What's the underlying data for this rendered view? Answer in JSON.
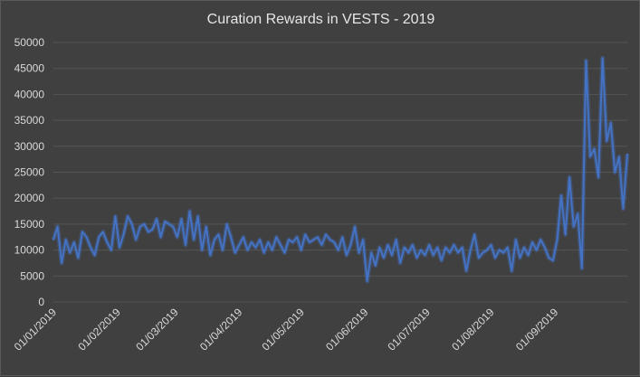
{
  "chart_data": {
    "type": "line",
    "title": "Curation Rewards in VESTS - 2019",
    "xlabel": "",
    "ylabel": "",
    "ylim": [
      0,
      50000
    ],
    "y_ticks": [
      "0",
      "5000",
      "10000",
      "15000",
      "20000",
      "25000",
      "30000",
      "35000",
      "40000",
      "45000",
      "50000"
    ],
    "x_ticks": [
      "01/01/2019",
      "01/02/2019",
      "01/03/2019",
      "01/04/2019",
      "01/05/2019",
      "01/06/2019",
      "01/07/2019",
      "01/08/2019",
      "01/09/2019"
    ],
    "x_start": "2019-01-01",
    "x_end": "2019-10-06",
    "grid": true,
    "legend": "none",
    "colors": {
      "line": "#4472c4",
      "grid": "#555555",
      "background": "#404040"
    },
    "series": [
      {
        "x": [
          "2019-01-01",
          "2019-01-03",
          "2019-01-05",
          "2019-01-07",
          "2019-01-09",
          "2019-01-11",
          "2019-01-13",
          "2019-01-15",
          "2019-01-17",
          "2019-01-19",
          "2019-01-21",
          "2019-01-23",
          "2019-01-25",
          "2019-01-27",
          "2019-01-29",
          "2019-01-31",
          "2019-02-02",
          "2019-02-04",
          "2019-02-06",
          "2019-02-08",
          "2019-02-10",
          "2019-02-12",
          "2019-02-14",
          "2019-02-16",
          "2019-02-18",
          "2019-02-20",
          "2019-02-22",
          "2019-02-24",
          "2019-02-26",
          "2019-02-28",
          "2019-03-02",
          "2019-03-04",
          "2019-03-06",
          "2019-03-08",
          "2019-03-10",
          "2019-03-12",
          "2019-03-14",
          "2019-03-16",
          "2019-03-18",
          "2019-03-20",
          "2019-03-22",
          "2019-03-24",
          "2019-03-26",
          "2019-03-28",
          "2019-03-30",
          "2019-04-01",
          "2019-04-03",
          "2019-04-05",
          "2019-04-07",
          "2019-04-09",
          "2019-04-11",
          "2019-04-13",
          "2019-04-15",
          "2019-04-17",
          "2019-04-19",
          "2019-04-21",
          "2019-04-23",
          "2019-04-25",
          "2019-04-27",
          "2019-04-29",
          "2019-05-01",
          "2019-05-03",
          "2019-05-05",
          "2019-05-07",
          "2019-05-09",
          "2019-05-11",
          "2019-05-13",
          "2019-05-15",
          "2019-05-17",
          "2019-05-19",
          "2019-05-21",
          "2019-05-23",
          "2019-05-25",
          "2019-05-27",
          "2019-05-29",
          "2019-05-31",
          "2019-06-02",
          "2019-06-04",
          "2019-06-06",
          "2019-06-08",
          "2019-06-10",
          "2019-06-12",
          "2019-06-14",
          "2019-06-16",
          "2019-06-18",
          "2019-06-20",
          "2019-06-22",
          "2019-06-24",
          "2019-06-26",
          "2019-06-28",
          "2019-06-30",
          "2019-07-02",
          "2019-07-04",
          "2019-07-06",
          "2019-07-08",
          "2019-07-10",
          "2019-07-12",
          "2019-07-14",
          "2019-07-16",
          "2019-07-18",
          "2019-07-20",
          "2019-07-22",
          "2019-07-24",
          "2019-07-26",
          "2019-07-28",
          "2019-07-30",
          "2019-08-01",
          "2019-08-03",
          "2019-08-05",
          "2019-08-07",
          "2019-08-09",
          "2019-08-11",
          "2019-08-13",
          "2019-08-15",
          "2019-08-17",
          "2019-08-19",
          "2019-08-21",
          "2019-08-23",
          "2019-08-25",
          "2019-08-27",
          "2019-08-29",
          "2019-08-31",
          "2019-09-02",
          "2019-09-04",
          "2019-09-06",
          "2019-09-08",
          "2019-09-10",
          "2019-09-12",
          "2019-09-14",
          "2019-09-16",
          "2019-09-18",
          "2019-09-20",
          "2019-09-22",
          "2019-09-24",
          "2019-09-26",
          "2019-09-28",
          "2019-09-30",
          "2019-10-02",
          "2019-10-04",
          "2019-10-06"
        ],
        "y": [
          12000,
          14500,
          7500,
          12000,
          9500,
          11500,
          8500,
          13500,
          12500,
          10500,
          9000,
          12500,
          13500,
          11500,
          10000,
          16500,
          10500,
          13000,
          16500,
          15000,
          12000,
          14500,
          15000,
          13500,
          14000,
          16000,
          12500,
          15500,
          15000,
          14500,
          12500,
          16000,
          11000,
          17500,
          12000,
          16500,
          10000,
          14500,
          9000,
          12000,
          13000,
          10000,
          15000,
          12500,
          9500,
          11000,
          12500,
          10000,
          11500,
          10500,
          12000,
          9500,
          11500,
          10000,
          12500,
          11000,
          9500,
          12000,
          11500,
          12500,
          10000,
          13000,
          11500,
          12000,
          12500,
          11000,
          13000,
          12000,
          11500,
          10000,
          12500,
          9000,
          11000,
          14500,
          9500,
          12000,
          4000,
          9500,
          7000,
          10500,
          8500,
          11000,
          9000,
          12000,
          7500,
          10500,
          9500,
          11000,
          8500,
          10000,
          9000,
          11000,
          9000,
          10500,
          8000,
          10500,
          9500,
          11000,
          9500,
          10500,
          6000,
          10000,
          13000,
          8500,
          9500,
          10000,
          11000,
          8500,
          10000,
          9500,
          10500,
          6000,
          12000,
          8500,
          10500,
          9000,
          11500,
          10000,
          12000,
          10500,
          8500,
          8000,
          12000,
          20500,
          13000,
          24000,
          14500,
          17000,
          6500,
          46500,
          28000,
          29500,
          24000,
          47000,
          31000,
          34500,
          25000,
          28000,
          18000,
          28500
        ]
      }
    ]
  }
}
